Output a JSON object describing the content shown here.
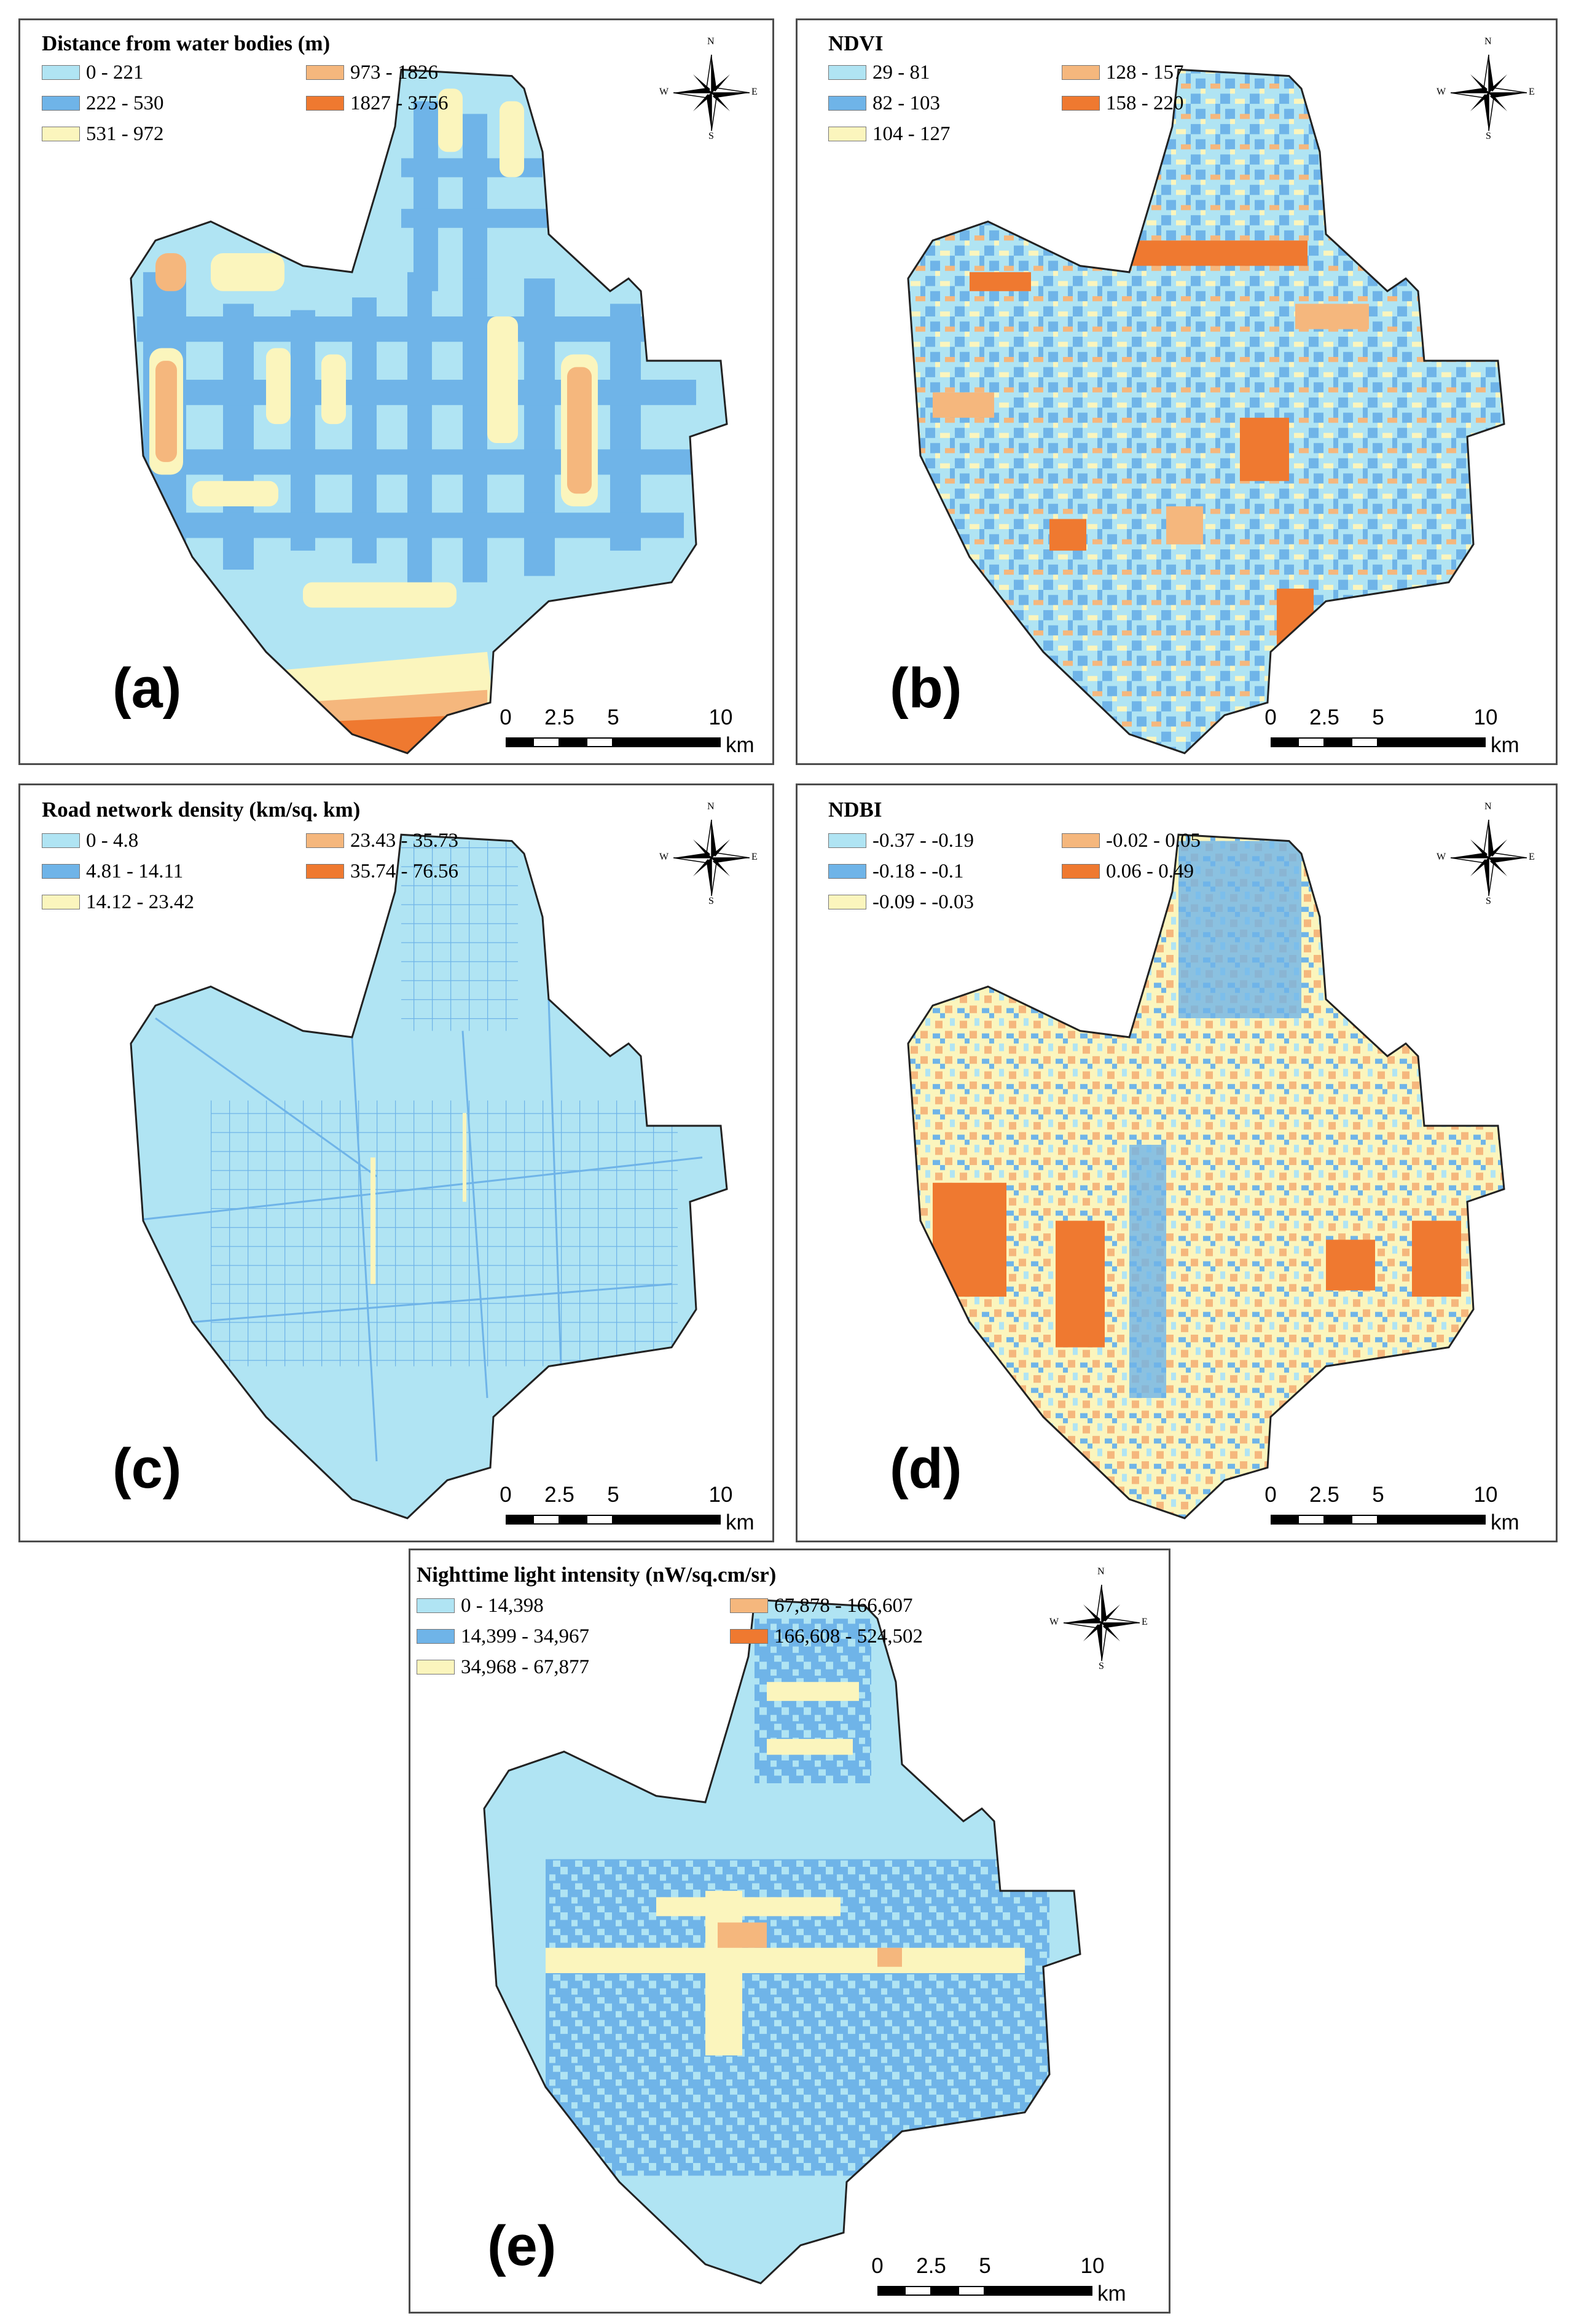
{
  "compass": {
    "n": "N",
    "s": "S",
    "e": "E",
    "w": "W"
  },
  "scale": {
    "ticks": [
      "0",
      "2.5",
      "5",
      "10"
    ],
    "unit": "km"
  },
  "colors": {
    "c1": "#b0e4f3",
    "c2": "#6fb4e8",
    "c3": "#fbf5bd",
    "c4": "#f5b77d",
    "c5": "#ef7930",
    "outline": "#222222"
  },
  "panels": [
    {
      "id": "a",
      "label": "(a)",
      "title": "Distance from water bodies (m)",
      "legend": [
        "0 - 221",
        "222 - 530",
        "531 - 972",
        "973 - 1826",
        "1827 - 3756"
      ]
    },
    {
      "id": "b",
      "label": "(b)",
      "title": "NDVI",
      "legend": [
        "29 - 81",
        "82 - 103",
        "104 - 127",
        "128 - 157",
        "158 - 220"
      ]
    },
    {
      "id": "c",
      "label": "(c)",
      "title": "Road network density (km/sq. km)",
      "legend": [
        "0 - 4.8",
        "4.81 - 14.11",
        "14.12 - 23.42",
        "23.43 - 35.73",
        "35.74 - 76.56"
      ]
    },
    {
      "id": "d",
      "label": "(d)",
      "title": "NDBI",
      "legend": [
        "-0.37 - -0.19",
        "-0.18 - -0.1",
        "-0.09 - -0.03",
        "-0.02 - 0.05",
        "0.06 - 0.49"
      ]
    },
    {
      "id": "e",
      "label": "(e)",
      "title": "Nighttime light intensity (nW/sq.cm/sr)",
      "legend": [
        "0 - 14,398",
        "14,399 - 34,967",
        "34,968 - 67,877",
        "67,878 - 166,607",
        "166,608 - 524,502"
      ]
    }
  ]
}
